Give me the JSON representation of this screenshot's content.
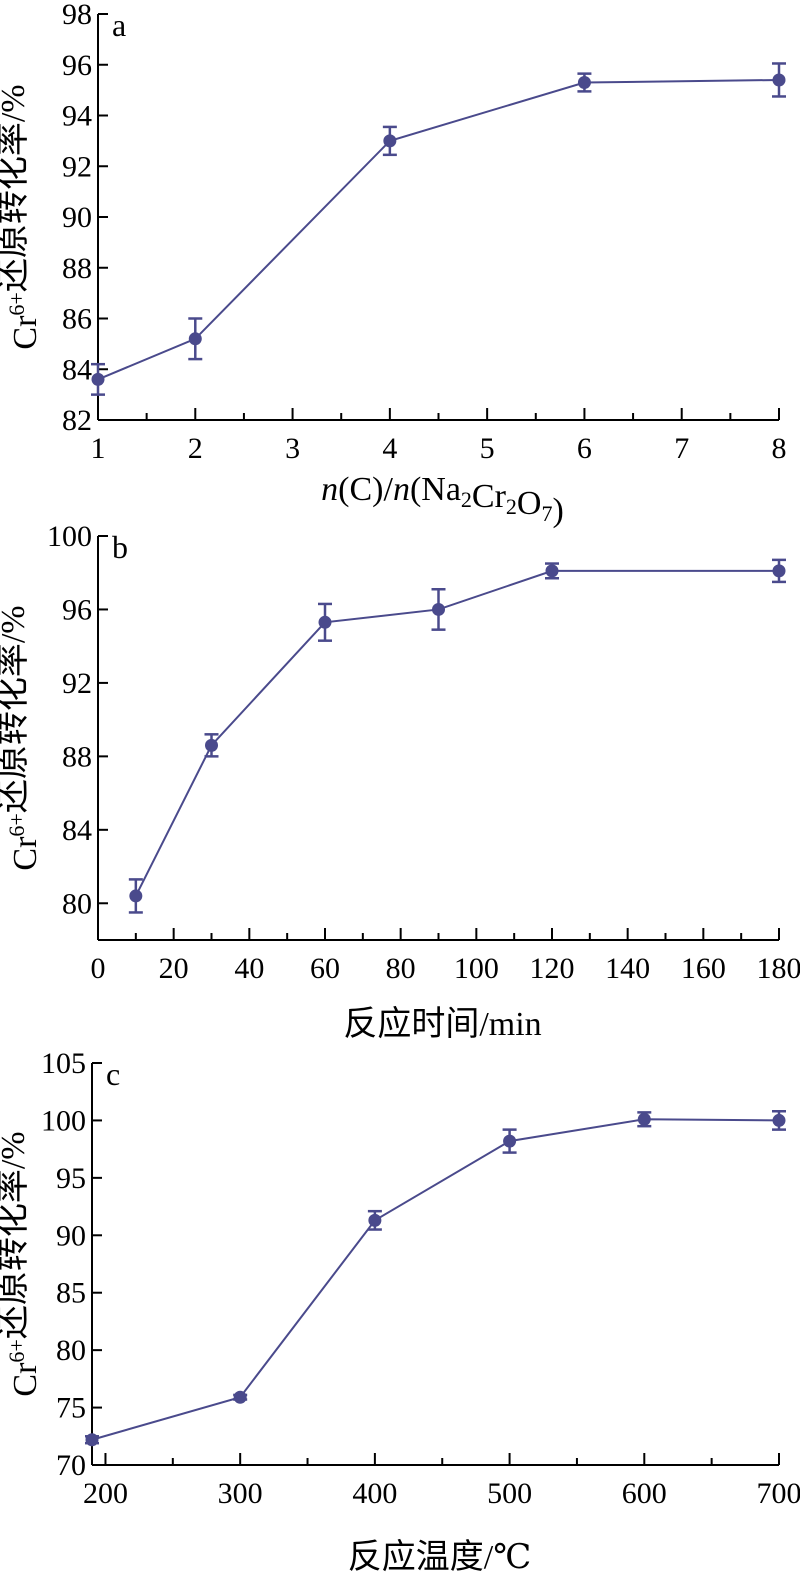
{
  "figure": {
    "series_color": "#4a4a8c"
  },
  "chart_data": [
    {
      "type": "line",
      "panel_label": "a",
      "xlabel": "n(C)/n(Na2Cr2O7)",
      "ylabel": "Cr6+还原转化率/%",
      "xlim": [
        1,
        8
      ],
      "ylim": [
        82,
        98
      ],
      "xticks": [
        1,
        2,
        3,
        4,
        5,
        6,
        7,
        8
      ],
      "yticks": [
        82,
        84,
        86,
        88,
        90,
        92,
        94,
        96,
        98
      ],
      "x": [
        1,
        2,
        4,
        6,
        8
      ],
      "y": [
        83.6,
        85.2,
        93.0,
        95.3,
        95.4
      ],
      "error": [
        0.6,
        0.8,
        0.55,
        0.35,
        0.65
      ]
    },
    {
      "type": "line",
      "panel_label": "b",
      "xlabel": "反应时间/min",
      "ylabel": "Cr6+还原转化率/%",
      "xlim": [
        0,
        180
      ],
      "ylim": [
        78,
        100
      ],
      "xticks": [
        0,
        20,
        40,
        60,
        80,
        100,
        120,
        140,
        160,
        180
      ],
      "yticks": [
        80,
        84,
        88,
        92,
        96,
        100
      ],
      "x": [
        10,
        30,
        60,
        90,
        120,
        180
      ],
      "y": [
        80.4,
        88.6,
        95.3,
        96.0,
        98.1,
        98.1
      ],
      "error": [
        0.9,
        0.6,
        1.0,
        1.1,
        0.4,
        0.6
      ]
    },
    {
      "type": "line",
      "panel_label": "c",
      "xlabel": "反应温度/℃",
      "ylabel": "Cr6+还原转化率/%",
      "xlim": [
        190,
        700
      ],
      "ylim": [
        70,
        105
      ],
      "xticks": [
        200,
        300,
        400,
        500,
        600,
        700
      ],
      "yticks": [
        70,
        75,
        80,
        85,
        90,
        95,
        100,
        105
      ],
      "x": [
        190,
        300,
        400,
        500,
        600,
        700
      ],
      "y": [
        72.2,
        75.9,
        91.3,
        98.2,
        100.1,
        100.0
      ],
      "error": [
        0.3,
        0.2,
        0.8,
        1.0,
        0.6,
        0.8
      ]
    }
  ]
}
